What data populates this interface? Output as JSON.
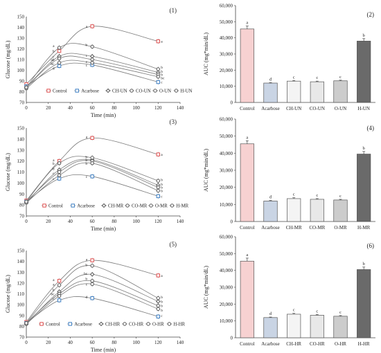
{
  "chart_data": [
    {
      "panel": "(1)",
      "type": "line",
      "xlabel": "Time (min)",
      "ylabel": "Glucose (mg/dL)",
      "x": [
        0,
        30,
        60,
        120
      ],
      "xticks": [
        "0",
        "20",
        "40",
        "60",
        "80",
        "100",
        "120",
        "140"
      ],
      "ylim": [
        70,
        150
      ],
      "yticks": [
        "70",
        "80",
        "90",
        "100",
        "110",
        "120",
        "130",
        "140",
        "150"
      ],
      "series": [
        {
          "name": "Control",
          "values": [
            87,
            118,
            141,
            127
          ],
          "color": "#e05050",
          "marker": "square"
        },
        {
          "name": "Acarbose",
          "values": [
            85,
            104,
            105,
            89
          ],
          "color": "#3d7fc4",
          "marker": "square"
        },
        {
          "name": "CH-UN",
          "values": [
            84,
            113,
            113,
            98
          ],
          "color": "#555555",
          "marker": "diamond"
        },
        {
          "name": "CO-UN",
          "values": [
            84,
            111,
            110,
            96
          ],
          "color": "#555555",
          "marker": "circle"
        },
        {
          "name": "O-UN",
          "values": [
            83,
            107,
            107,
            94
          ],
          "color": "#555555",
          "marker": "circle"
        },
        {
          "name": "H-UN",
          "values": [
            84,
            121,
            122,
            101
          ],
          "color": "#555555",
          "marker": "circle"
        }
      ],
      "sig_labels": [
        {
          "x": 30,
          "y": 123,
          "text": "a"
        },
        {
          "x": 30,
          "y": 118,
          "text": "b"
        },
        {
          "x": 30,
          "y": 113,
          "text": "c"
        },
        {
          "x": 30,
          "y": 110,
          "text": "ab"
        },
        {
          "x": 30,
          "y": 106,
          "text": "bc"
        },
        {
          "x": 30,
          "y": 102,
          "text": "d"
        },
        {
          "x": 60,
          "y": 141,
          "text": "a"
        },
        {
          "x": 60,
          "y": 124,
          "text": "b"
        },
        {
          "x": 60,
          "y": 114,
          "text": "c"
        },
        {
          "x": 60,
          "y": 108,
          "text": "c"
        },
        {
          "x": 60,
          "y": 105,
          "text": "c"
        },
        {
          "x": 120,
          "y": 127,
          "text": "a"
        },
        {
          "x": 120,
          "y": 103,
          "text": "b"
        },
        {
          "x": 120,
          "y": 99,
          "text": "b"
        },
        {
          "x": 120,
          "y": 96,
          "text": "b"
        },
        {
          "x": 120,
          "y": 93,
          "text": "bc"
        },
        {
          "x": 120,
          "y": 89,
          "text": "c"
        }
      ]
    },
    {
      "panel": "(2)",
      "type": "bar",
      "ylabel": "AUC (mg*min/dL)",
      "ylim": [
        0,
        60000
      ],
      "yticks": [
        "0",
        "10,000",
        "20,000",
        "30,000",
        "40,000",
        "50,000",
        "60,000"
      ],
      "categories": [
        "Control",
        "Acarbose",
        "CH-UN",
        "CO-UN",
        "O-UN",
        "H-UN"
      ],
      "values": [
        45500,
        12000,
        13200,
        12800,
        13400,
        38000
      ],
      "errors": [
        1800,
        300,
        400,
        400,
        400,
        1500
      ],
      "colors": [
        "#f7d1d1",
        "#c9d4e4",
        "#f4f4f4",
        "#e8e8e8",
        "#cccccc",
        "#6a6a6a"
      ],
      "sig_labels": [
        "a",
        "d",
        "c",
        "c",
        "c",
        "b"
      ]
    },
    {
      "panel": "(3)",
      "type": "line",
      "xlabel": "Time (min)",
      "ylabel": "Glucose (mg/dL)",
      "x": [
        0,
        30,
        60,
        120
      ],
      "xticks": [
        "0",
        "20",
        "40",
        "60",
        "80",
        "100",
        "120",
        "140"
      ],
      "ylim": [
        70,
        150
      ],
      "yticks": [
        "70",
        "80",
        "90",
        "100",
        "110",
        "120",
        "130",
        "140",
        "150"
      ],
      "series": [
        {
          "name": "Control",
          "values": [
            84,
            120,
            141,
            126
          ],
          "color": "#e05050",
          "marker": "square"
        },
        {
          "name": "Acarbose",
          "values": [
            83,
            104,
            106,
            88
          ],
          "color": "#3d7fc4",
          "marker": "square"
        },
        {
          "name": "CH-MR",
          "values": [
            82,
            112,
            121,
            98
          ],
          "color": "#555555",
          "marker": "diamond"
        },
        {
          "name": "CO-MR",
          "values": [
            83,
            110,
            120,
            96
          ],
          "color": "#555555",
          "marker": "circle"
        },
        {
          "name": "O-MR",
          "values": [
            82,
            107,
            118,
            93
          ],
          "color": "#555555",
          "marker": "circle"
        },
        {
          "name": "H-MR",
          "values": [
            83,
            118,
            123,
            102
          ],
          "color": "#555555",
          "marker": "circle"
        }
      ],
      "sig_labels": [
        {
          "x": 30,
          "y": 121,
          "text": "a"
        },
        {
          "x": 30,
          "y": 118,
          "text": "b"
        },
        {
          "x": 30,
          "y": 113,
          "text": "b"
        },
        {
          "x": 30,
          "y": 109,
          "text": "c"
        },
        {
          "x": 30,
          "y": 104,
          "text": "c"
        },
        {
          "x": 60,
          "y": 142,
          "text": "a"
        },
        {
          "x": 60,
          "y": 124,
          "text": "b"
        },
        {
          "x": 60,
          "y": 121,
          "text": "b"
        },
        {
          "x": 60,
          "y": 118,
          "text": "b"
        },
        {
          "x": 60,
          "y": 106,
          "text": "c"
        },
        {
          "x": 120,
          "y": 126,
          "text": "a"
        },
        {
          "x": 120,
          "y": 103,
          "text": "b"
        },
        {
          "x": 120,
          "y": 99,
          "text": "b"
        },
        {
          "x": 120,
          "y": 96,
          "text": "b"
        },
        {
          "x": 120,
          "y": 93,
          "text": "b"
        },
        {
          "x": 120,
          "y": 88,
          "text": "c"
        }
      ]
    },
    {
      "panel": "(4)",
      "type": "bar",
      "ylabel": "AUC (mg*min/dL)",
      "ylim": [
        0,
        60000
      ],
      "yticks": [
        "0",
        "10,000",
        "20,000",
        "30,000",
        "40,000",
        "50,000",
        "60,000"
      ],
      "categories": [
        "Control",
        "Acarbose",
        "CH-MR",
        "CO-MR",
        "O-MR",
        "H-MR"
      ],
      "values": [
        45500,
        12000,
        13400,
        13000,
        12600,
        39500
      ],
      "errors": [
        1800,
        300,
        500,
        400,
        400,
        1500
      ],
      "colors": [
        "#f7d1d1",
        "#c9d4e4",
        "#f4f4f4",
        "#e8e8e8",
        "#cccccc",
        "#6a6a6a"
      ],
      "sig_labels": [
        "a",
        "d",
        "c",
        "c",
        "c",
        "b"
      ]
    },
    {
      "panel": "(5)",
      "type": "line",
      "xlabel": "Time (min)",
      "ylabel": "Glucose (mg/dL)",
      "x": [
        0,
        30,
        60,
        120
      ],
      "xticks": [
        "0",
        "20",
        "40",
        "60",
        "80",
        "100",
        "120",
        "140"
      ],
      "ylim": [
        70,
        150
      ],
      "yticks": [
        "70",
        "80",
        "90",
        "100",
        "110",
        "120",
        "130",
        "140",
        "150"
      ],
      "series": [
        {
          "name": "Control",
          "values": [
            84,
            122,
            141,
            127
          ],
          "color": "#e05050",
          "marker": "square"
        },
        {
          "name": "Acarbose",
          "values": [
            83,
            104,
            106,
            89
          ],
          "color": "#3d7fc4",
          "marker": "square"
        },
        {
          "name": "CH-HR",
          "values": [
            82,
            112,
            128,
            103
          ],
          "color": "#555555",
          "marker": "diamond"
        },
        {
          "name": "CO-HR",
          "values": [
            83,
            110,
            122,
            99
          ],
          "color": "#555555",
          "marker": "circle"
        },
        {
          "name": "O-HR",
          "values": [
            82,
            108,
            119,
            96
          ],
          "color": "#555555",
          "marker": "circle"
        },
        {
          "name": "H-HR",
          "values": [
            83,
            118,
            136,
            106
          ],
          "color": "#555555",
          "marker": "circle"
        }
      ],
      "sig_labels": [
        {
          "x": 30,
          "y": 123,
          "text": "a"
        },
        {
          "x": 30,
          "y": 119,
          "text": "a"
        },
        {
          "x": 30,
          "y": 114,
          "text": "b"
        },
        {
          "x": 30,
          "y": 110,
          "text": "bc"
        },
        {
          "x": 30,
          "y": 106,
          "text": "c"
        },
        {
          "x": 60,
          "y": 142,
          "text": "a"
        },
        {
          "x": 60,
          "y": 137,
          "text": "b"
        },
        {
          "x": 60,
          "y": 129,
          "text": "bc"
        },
        {
          "x": 60,
          "y": 124,
          "text": "b"
        },
        {
          "x": 60,
          "y": 119,
          "text": "c"
        },
        {
          "x": 60,
          "y": 107,
          "text": "d"
        },
        {
          "x": 120,
          "y": 127,
          "text": "a"
        },
        {
          "x": 120,
          "y": 107,
          "text": "b"
        },
        {
          "x": 120,
          "y": 103,
          "text": "b"
        },
        {
          "x": 120,
          "y": 99,
          "text": "b"
        },
        {
          "x": 120,
          "y": 95,
          "text": "b"
        },
        {
          "x": 120,
          "y": 90,
          "text": "c"
        }
      ]
    },
    {
      "panel": "(6)",
      "type": "bar",
      "ylabel": "AUC (mg*min/dL)",
      "ylim": [
        0,
        60000
      ],
      "yticks": [
        "0",
        "10,000",
        "20,000",
        "30,000",
        "40,000",
        "50,000",
        "60,000"
      ],
      "categories": [
        "Control",
        "Acarbose",
        "CH-HR",
        "CO-HR",
        "O-HR",
        "H-HR"
      ],
      "values": [
        45500,
        12000,
        14000,
        13400,
        12800,
        40500
      ],
      "errors": [
        1800,
        300,
        500,
        400,
        400,
        1500
      ],
      "colors": [
        "#f7d1d1",
        "#c9d4e4",
        "#f4f4f4",
        "#e8e8e8",
        "#cccccc",
        "#6a6a6a"
      ],
      "sig_labels": [
        "a",
        "d",
        "c",
        "c",
        "c",
        "b"
      ]
    }
  ]
}
